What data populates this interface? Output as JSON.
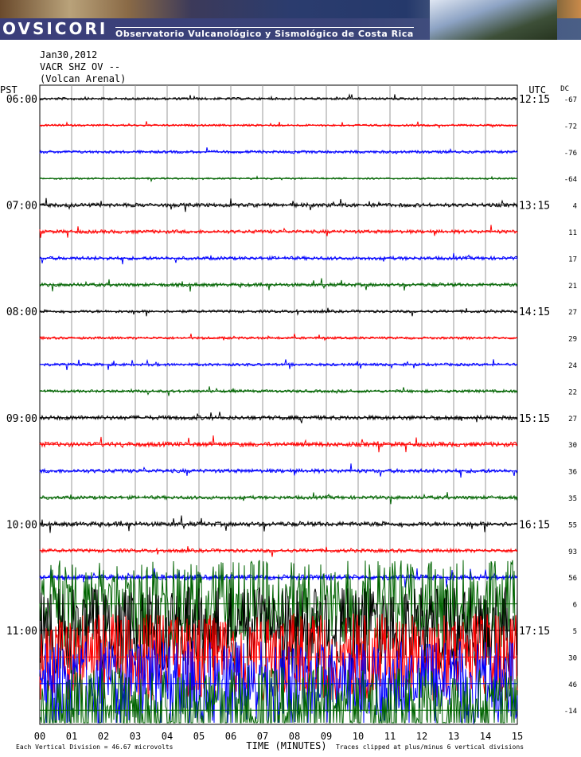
{
  "banner": {
    "brand": "OVSICORI",
    "subtitle": "Observatorio Vulcanológico y Sismológico de Costa Rica"
  },
  "header": {
    "date": "Jan30,2012",
    "station": "VACR SHZ OV --",
    "location": "(Volcan Arenal)"
  },
  "chart_data": {
    "type": "line",
    "left_tz": "PST",
    "right_tz": "UTC",
    "offset_header": "DC",
    "xlabel": "TIME (MINUTES)",
    "x_ticks": [
      "00",
      "01",
      "02",
      "03",
      "04",
      "05",
      "06",
      "07",
      "08",
      "09",
      "10",
      "11",
      "12",
      "13",
      "14",
      "15"
    ],
    "xlim": [
      0,
      15
    ],
    "footer_left": "Each Vertical Division = 46.67 microvolts",
    "footer_right": "Traces clipped at plus/minus 6 vertical divisions",
    "colors": [
      "#000000",
      "#ff0000",
      "#0000ff",
      "#006400"
    ],
    "grid": "vertical lines every minute",
    "rows": [
      {
        "pst": "06:00",
        "utc": "12:15",
        "dc": "-67",
        "level": 0.7
      },
      {
        "pst": "",
        "utc": "",
        "dc": "-72",
        "level": 0.6
      },
      {
        "pst": "",
        "utc": "",
        "dc": "-76",
        "level": 0.8
      },
      {
        "pst": "",
        "utc": "",
        "dc": "-64",
        "level": 0.5
      },
      {
        "pst": "07:00",
        "utc": "13:15",
        "dc": "4",
        "level": 1.1
      },
      {
        "pst": "",
        "utc": "",
        "dc": "11",
        "level": 1.0
      },
      {
        "pst": "",
        "utc": "",
        "dc": "17",
        "level": 1.0
      },
      {
        "pst": "",
        "utc": "",
        "dc": "21",
        "level": 1.0
      },
      {
        "pst": "08:00",
        "utc": "14:15",
        "dc": "27",
        "level": 0.8
      },
      {
        "pst": "",
        "utc": "",
        "dc": "29",
        "level": 0.7
      },
      {
        "pst": "",
        "utc": "",
        "dc": "24",
        "level": 0.8
      },
      {
        "pst": "",
        "utc": "",
        "dc": "22",
        "level": 0.8
      },
      {
        "pst": "09:00",
        "utc": "15:15",
        "dc": "27",
        "level": 1.2
      },
      {
        "pst": "",
        "utc": "",
        "dc": "30",
        "level": 1.3
      },
      {
        "pst": "",
        "utc": "",
        "dc": "36",
        "level": 1.1
      },
      {
        "pst": "",
        "utc": "",
        "dc": "35",
        "level": 1.0
      },
      {
        "pst": "10:00",
        "utc": "16:15",
        "dc": "55",
        "level": 1.3
      },
      {
        "pst": "",
        "utc": "",
        "dc": "93",
        "level": 1.0
      },
      {
        "pst": "",
        "utc": "",
        "dc": "56",
        "level": 1.5
      },
      {
        "pst": "",
        "utc": "",
        "dc": "6",
        "level": 6
      },
      {
        "pst": "11:00",
        "utc": "17:15",
        "dc": "5",
        "level": 6
      },
      {
        "pst": "",
        "utc": "",
        "dc": "30",
        "level": 6
      },
      {
        "pst": "",
        "utc": "",
        "dc": "46",
        "level": 6
      },
      {
        "pst": "",
        "utc": "",
        "dc": "-14",
        "level": 6
      }
    ]
  }
}
